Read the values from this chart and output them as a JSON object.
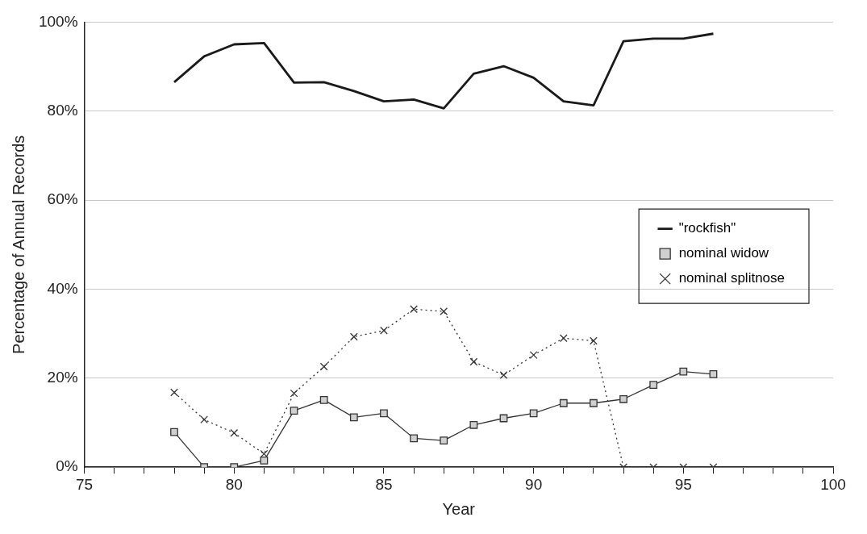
{
  "chart_data": {
    "type": "line",
    "xlabel": "Year",
    "ylabel": "Percentage of Annual Records",
    "x": [
      78,
      79,
      80,
      81,
      82,
      83,
      84,
      85,
      86,
      87,
      88,
      89,
      90,
      91,
      92,
      93,
      94,
      95,
      96
    ],
    "series": [
      {
        "name": "\"rockfish\"",
        "color": "#1a1a1a",
        "marker": "none",
        "line_style": "solid",
        "values": [
          86.5,
          92.3,
          95,
          95.3,
          86.4,
          86.5,
          84.5,
          82.2,
          82.6,
          80.6,
          88.4,
          90.1,
          87.5,
          82.2,
          81.3,
          95.7,
          96.3,
          96.3,
          97.4
        ]
      },
      {
        "name": "nominal widow",
        "color": "#333333",
        "marker": "square",
        "line_style": "solid",
        "values": [
          7.9,
          0,
          0,
          1.5,
          12.7,
          15.1,
          11.2,
          12.1,
          6.5,
          6,
          9.5,
          11,
          12.1,
          14.4,
          14.4,
          15.3,
          18.5,
          21.5,
          20.9
        ]
      },
      {
        "name": "nominal splitnose",
        "color": "#333333",
        "marker": "cross",
        "line_style": "dotted",
        "values": [
          16.8,
          10.7,
          7.7,
          3,
          16.6,
          22.6,
          29.3,
          30.7,
          35.5,
          35,
          23.7,
          20.7,
          25.2,
          29,
          28.4,
          0,
          0,
          0,
          0
        ]
      }
    ],
    "xlim": [
      75,
      100
    ],
    "xticks": [
      75,
      {
        "value": 76,
        "label": null
      },
      {
        "value": 77,
        "label": null
      },
      {
        "value": 78,
        "label": null
      },
      {
        "value": 79,
        "label": null
      },
      80,
      {
        "value": 81,
        "label": null
      },
      {
        "value": 82,
        "label": null
      },
      {
        "value": 83,
        "label": null
      },
      {
        "value": 84,
        "label": null
      },
      85,
      {
        "value": 86,
        "label": null
      },
      {
        "value": 87,
        "label": null
      },
      {
        "value": 88,
        "label": null
      },
      {
        "value": 89,
        "label": null
      },
      90,
      {
        "value": 91,
        "label": null
      },
      {
        "value": 92,
        "label": null
      },
      {
        "value": 93,
        "label": null
      },
      {
        "value": 94,
        "label": null
      },
      95,
      {
        "value": 96,
        "label": null
      },
      {
        "value": 97,
        "label": null
      },
      {
        "value": 98,
        "label": null
      },
      {
        "value": 99,
        "label": null
      },
      100
    ],
    "ylim": [
      0,
      100
    ],
    "yticks": [
      {
        "value": 0,
        "label": "0%"
      },
      {
        "value": 20,
        "label": "20%"
      },
      {
        "value": 40,
        "label": "40%"
      },
      {
        "value": 60,
        "label": "60%"
      },
      {
        "value": 80,
        "label": "80%"
      },
      {
        "value": 100,
        "label": "100%"
      }
    ],
    "grid": "y",
    "legend": "right"
  }
}
